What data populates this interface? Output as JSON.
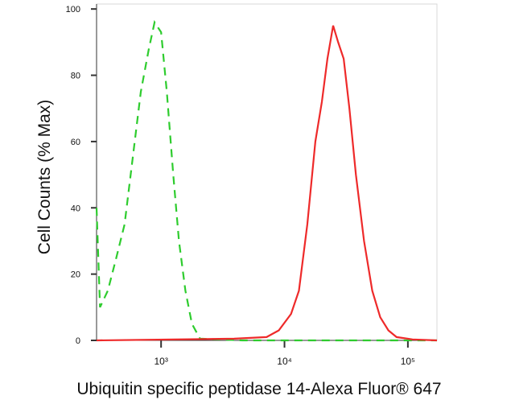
{
  "chart_data": {
    "type": "line",
    "xlabel": "Ubiquitin specific peptidase 14-Alexa Fluor® 647",
    "ylabel": "Cell Counts (% Max)",
    "xscale": "log",
    "xlim": [
      300,
      172000
    ],
    "ylim": [
      0,
      101.5
    ],
    "xticks": [
      {
        "value": 1000,
        "label": "10³"
      },
      {
        "value": 10000,
        "label": "10⁴"
      },
      {
        "value": 100000,
        "label": "10⁵"
      }
    ],
    "yticks": [
      0,
      20,
      40,
      60,
      80,
      100
    ],
    "series": [
      {
        "color": "#2ecc2e",
        "dash": true,
        "x": [
          300,
          320,
          370,
          434,
          506,
          589,
          685,
          796,
          886,
          1000,
          1112,
          1255,
          1397,
          1575,
          1778,
          2070,
          4550,
          20700,
          94200,
          172000
        ],
        "values": [
          40,
          10,
          15,
          25,
          35,
          55,
          75,
          88,
          96,
          93,
          75,
          50,
          30,
          15,
          5,
          0.5,
          0,
          0,
          0,
          0
        ]
      },
      {
        "color": "#ee2a2a",
        "dash": false,
        "x": [
          300,
          3910,
          7160,
          8990,
          11300,
          13100,
          15300,
          17800,
          20100,
          22300,
          24800,
          27200,
          30200,
          33600,
          37900,
          44100,
          51400,
          59700,
          69500,
          80900,
          109000,
          172000
        ],
        "values": [
          0,
          0.5,
          1,
          3,
          8,
          15,
          35,
          60,
          72,
          85,
          95,
          90,
          85,
          70,
          50,
          30,
          15,
          7,
          3,
          1,
          0.3,
          0
        ]
      }
    ]
  }
}
